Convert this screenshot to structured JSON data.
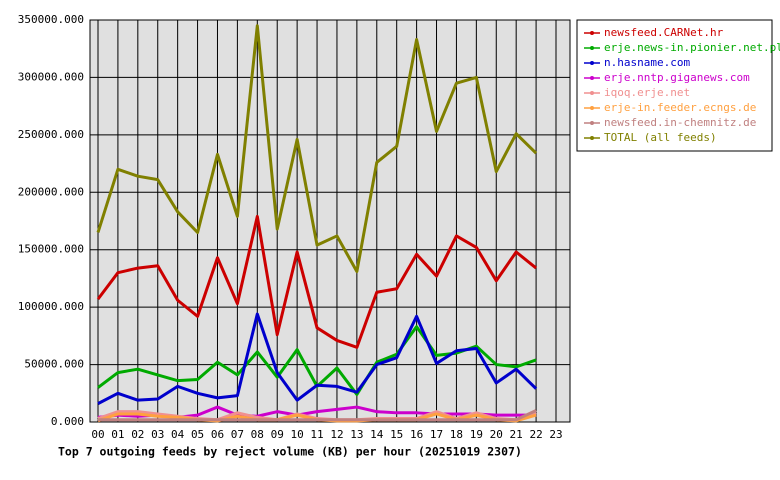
{
  "chart_data": {
    "type": "line",
    "title": "Top 7 outgoing feeds by reject volume (KB) per hour (20251019 2307)",
    "categories": [
      "00",
      "01",
      "02",
      "03",
      "04",
      "05",
      "06",
      "07",
      "08",
      "09",
      "10",
      "11",
      "12",
      "13",
      "14",
      "15",
      "16",
      "17",
      "18",
      "19",
      "20",
      "21",
      "22",
      "23"
    ],
    "ylim": [
      0,
      350000
    ],
    "yticks": [
      {
        "value": 0,
        "label": "0.000"
      },
      {
        "value": 50000,
        "label": "50000.000"
      },
      {
        "value": 100000,
        "label": "100000.000"
      },
      {
        "value": 150000,
        "label": "150000.000"
      },
      {
        "value": 200000,
        "label": "200000.000"
      },
      {
        "value": 250000,
        "label": "250000.000"
      },
      {
        "value": 300000,
        "label": "300000.000"
      },
      {
        "value": 350000,
        "label": "350000.000"
      }
    ],
    "grid": true,
    "series": [
      {
        "name": "newsfeed.CARNet.hr",
        "color": "#cc0000",
        "values": [
          107000,
          130000,
          134000,
          136000,
          106000,
          92000,
          143000,
          103000,
          179000,
          76000,
          148000,
          82000,
          71000,
          65000,
          113000,
          116000,
          146000,
          127000,
          162000,
          152000,
          123000,
          148000,
          134000,
          null
        ]
      },
      {
        "name": "erje.news-in.pionier.net.pl",
        "color": "#00aa00",
        "values": [
          30000,
          43000,
          46000,
          41000,
          36000,
          37000,
          52000,
          41000,
          61000,
          39000,
          63000,
          31000,
          47000,
          24000,
          52000,
          59000,
          83000,
          58000,
          60000,
          66000,
          50000,
          48000,
          54000,
          null
        ]
      },
      {
        "name": "n.hasname.com",
        "color": "#0000cc",
        "values": [
          16000,
          25000,
          19000,
          20000,
          31000,
          25000,
          21000,
          23000,
          94000,
          43000,
          19000,
          32000,
          31000,
          26000,
          50000,
          56000,
          92000,
          51000,
          62000,
          64000,
          34000,
          46000,
          29000,
          null
        ]
      },
      {
        "name": "erje.nntp.giganews.com",
        "color": "#cc00cc",
        "values": [
          4000,
          6000,
          5000,
          6000,
          4000,
          6000,
          13000,
          6000,
          5000,
          9000,
          6000,
          9000,
          11000,
          13000,
          9000,
          8000,
          8000,
          7000,
          7000,
          7000,
          6000,
          6000,
          6000,
          null
        ]
      },
      {
        "name": "iqoq.erje.net",
        "color": "#f09090",
        "values": [
          3000,
          9000,
          9000,
          7000,
          5000,
          3000,
          2000,
          8000,
          4000,
          2000,
          7000,
          3000,
          2000,
          2000,
          3000,
          3000,
          3000,
          9000,
          3000,
          8000,
          3000,
          2000,
          8000,
          null
        ]
      },
      {
        "name": "erje-in.feeder.ecngs.de",
        "color": "#ffa040",
        "values": [
          1000,
          7000,
          7000,
          5000,
          4000,
          2000,
          1000,
          5000,
          2000,
          2000,
          6000,
          2000,
          1000,
          1000,
          2000,
          2000,
          2000,
          7000,
          2000,
          6000,
          2000,
          1000,
          6000,
          null
        ]
      },
      {
        "name": "newsfeed.in-chemnitz.de",
        "color": "#c08080",
        "values": [
          2000,
          2000,
          2000,
          2000,
          2000,
          2000,
          2000,
          2000,
          2000,
          2000,
          2000,
          2000,
          2000,
          2000,
          2000,
          2000,
          2000,
          2000,
          2000,
          2000,
          2000,
          2000,
          10000,
          null
        ]
      },
      {
        "name": "TOTAL (all feeds)",
        "color": "#808000",
        "values": [
          165000,
          220000,
          214000,
          211000,
          183000,
          165000,
          233000,
          179000,
          345000,
          168000,
          246000,
          154000,
          162000,
          131000,
          226000,
          240000,
          333000,
          253000,
          295000,
          300000,
          218000,
          251000,
          234000,
          null
        ]
      }
    ]
  }
}
